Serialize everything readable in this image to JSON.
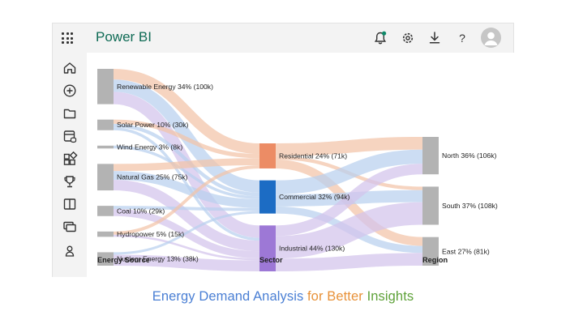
{
  "app": {
    "title": "Power BI"
  },
  "toolbar": {
    "icons": [
      "apps-icon",
      "bell-icon",
      "gear-icon",
      "download-icon",
      "help-icon",
      "avatar"
    ],
    "help_label": "?",
    "notification_color": "#0f8a6a"
  },
  "sidebar": {
    "items": [
      "home-icon",
      "add-icon",
      "folder-icon",
      "data-icon",
      "apps-grid-icon",
      "trophy-icon",
      "book-icon",
      "monitor-icon",
      "user-icon"
    ]
  },
  "chart_data": {
    "type": "sankey",
    "columns": [
      "Energy Source",
      "Sector",
      "Region"
    ],
    "nodes": {
      "source": [
        {
          "label": "Renewable Energy 34% (100k)",
          "value": 100,
          "color": "#b3b3b3"
        },
        {
          "label": "Solar Power 10% (30k)",
          "value": 30,
          "color": "#b3b3b3"
        },
        {
          "label": "Wind Energy 3% (8k)",
          "value": 8,
          "color": "#b3b3b3"
        },
        {
          "label": "Natural Gas 25% (75k)",
          "value": 75,
          "color": "#b3b3b3"
        },
        {
          "label": "Coal 10% (29k)",
          "value": 29,
          "color": "#b3b3b3"
        },
        {
          "label": "Hydropower 5% (15k)",
          "value": 15,
          "color": "#b3b3b3"
        },
        {
          "label": "Nuclear Energy 13% (38k)",
          "value": 38,
          "color": "#b3b3b3"
        }
      ],
      "sector": [
        {
          "label": "Residential 24% (71k)",
          "value": 71,
          "color": "#ec8c65"
        },
        {
          "label": "Commercial 32% (94k)",
          "value": 94,
          "color": "#1c6cc4"
        },
        {
          "label": "Industrial 44% (130k)",
          "value": 130,
          "color": "#9d78d6"
        }
      ],
      "region": [
        {
          "label": "North 36% (106k)",
          "value": 106,
          "color": "#b3b3b3"
        },
        {
          "label": "South 37% (108k)",
          "value": 108,
          "color": "#b3b3b3"
        },
        {
          "label": "East 27% (81k)",
          "value": 81,
          "color": "#b3b3b3"
        }
      ]
    },
    "links": [
      {
        "from": "source.0",
        "to": "sector.0",
        "value": 30,
        "color": "#f2c4a8"
      },
      {
        "from": "source.0",
        "to": "sector.1",
        "value": 35,
        "color": "#b8d0ef"
      },
      {
        "from": "source.0",
        "to": "sector.2",
        "value": 35,
        "color": "#d2c4ec"
      },
      {
        "from": "source.1",
        "to": "sector.0",
        "value": 12,
        "color": "#f2c4a8"
      },
      {
        "from": "source.1",
        "to": "sector.1",
        "value": 10,
        "color": "#b8d0ef"
      },
      {
        "from": "source.1",
        "to": "sector.2",
        "value": 8,
        "color": "#b8d0ef"
      },
      {
        "from": "source.2",
        "to": "sector.1",
        "value": 8,
        "color": "#b8d0ef"
      },
      {
        "from": "source.3",
        "to": "sector.0",
        "value": 20,
        "color": "#f2c4a8"
      },
      {
        "from": "source.3",
        "to": "sector.1",
        "value": 25,
        "color": "#b8d0ef"
      },
      {
        "from": "source.3",
        "to": "sector.2",
        "value": 30,
        "color": "#d2c4ec"
      },
      {
        "from": "source.4",
        "to": "sector.1",
        "value": 9,
        "color": "#b8d0ef"
      },
      {
        "from": "source.4",
        "to": "sector.2",
        "value": 20,
        "color": "#d2c4ec"
      },
      {
        "from": "source.5",
        "to": "sector.0",
        "value": 9,
        "color": "#f2c4a8"
      },
      {
        "from": "source.5",
        "to": "sector.2",
        "value": 6,
        "color": "#d2c4ec"
      },
      {
        "from": "source.6",
        "to": "sector.1",
        "value": 7,
        "color": "#b8d0ef"
      },
      {
        "from": "source.6",
        "to": "sector.2",
        "value": 31,
        "color": "#d2c4ec"
      },
      {
        "from": "sector.0",
        "to": "region.0",
        "value": 36,
        "color": "#f2c4a8"
      },
      {
        "from": "sector.0",
        "to": "region.1",
        "value": 10,
        "color": "#f2c4a8"
      },
      {
        "from": "sector.0",
        "to": "region.2",
        "value": 25,
        "color": "#f2c4a8"
      },
      {
        "from": "sector.1",
        "to": "region.0",
        "value": 40,
        "color": "#b8d0ef"
      },
      {
        "from": "sector.1",
        "to": "region.1",
        "value": 34,
        "color": "#b8d0ef"
      },
      {
        "from": "sector.1",
        "to": "region.2",
        "value": 20,
        "color": "#b8d0ef"
      },
      {
        "from": "sector.2",
        "to": "region.0",
        "value": 30,
        "color": "#d2c4ec"
      },
      {
        "from": "sector.2",
        "to": "region.1",
        "value": 64,
        "color": "#d2c4ec"
      },
      {
        "from": "sector.2",
        "to": "region.2",
        "value": 36,
        "color": "#d2c4ec"
      }
    ]
  },
  "caption": {
    "part1": "Energy Demand Analysis",
    "part2": "for Better",
    "part3": "Insights"
  }
}
